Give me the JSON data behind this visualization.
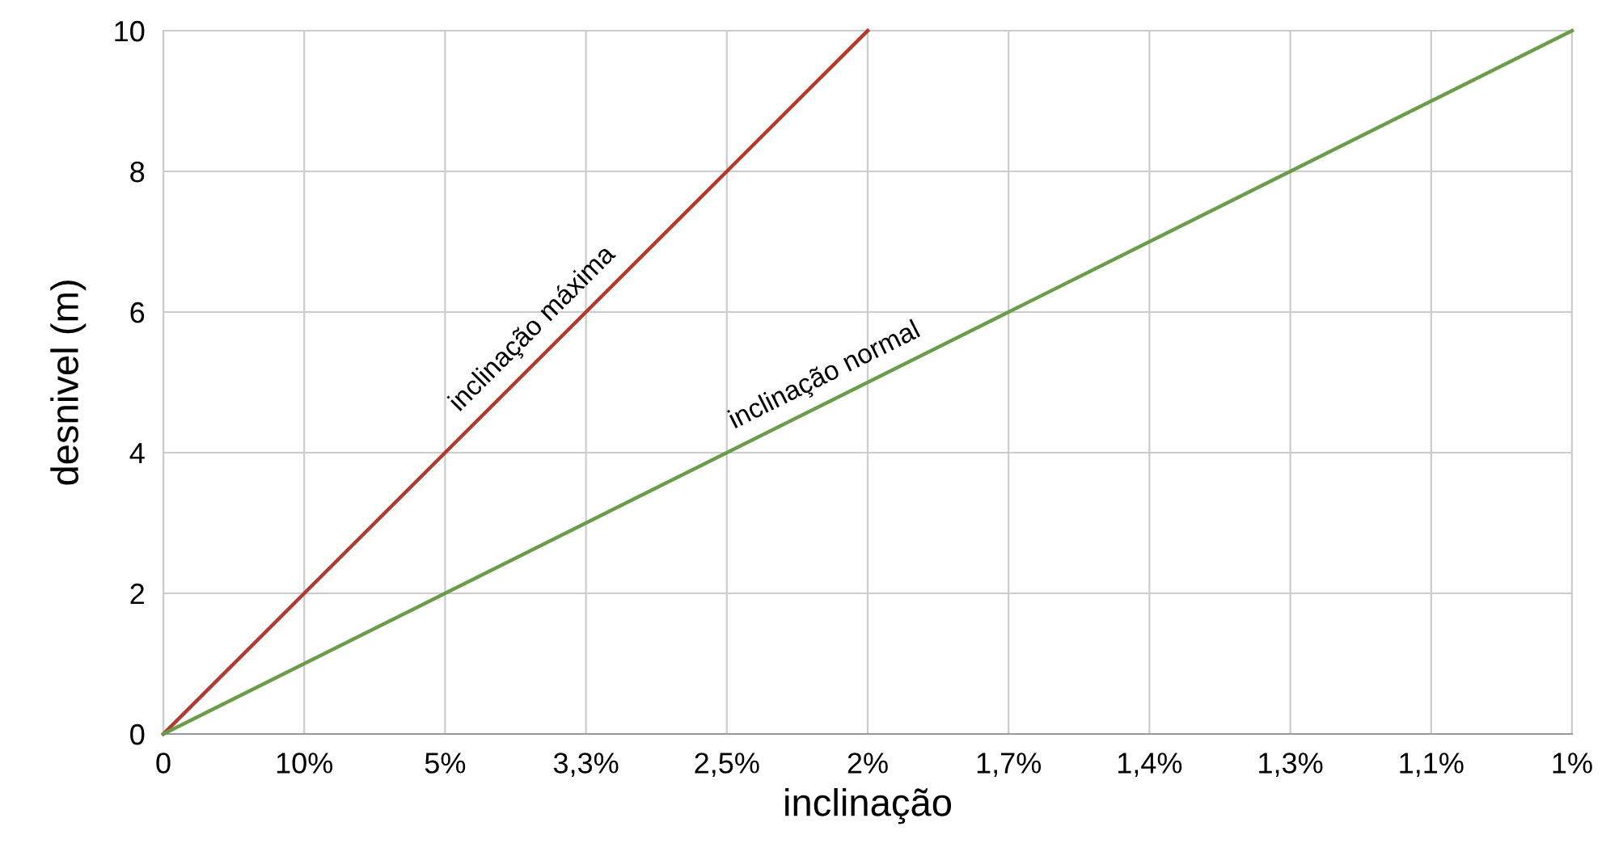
{
  "chart_data": {
    "type": "line",
    "xlabel": "inclinação",
    "ylabel": "desnivel (m)",
    "categories": [
      "0",
      "10%",
      "5%",
      "3,3%",
      "2,5%",
      "2%",
      "1,7%",
      "1,4%",
      "1,3%",
      "1,1%",
      "1%"
    ],
    "series": [
      {
        "color": "#b03a2e",
        "values": [
          0,
          2,
          4,
          6,
          8,
          10,
          null,
          null,
          null,
          null,
          null
        ]
      },
      {
        "color": "#6a9c4a",
        "values": [
          0,
          1,
          2,
          3,
          4,
          5,
          6,
          7,
          8,
          9,
          10
        ]
      }
    ],
    "annotations": [
      "inclinação máxima",
      "inclinação normal"
    ],
    "ylim": [
      0,
      10
    ],
    "yticks": [
      0,
      2,
      4,
      6,
      8,
      10
    ],
    "grid": true,
    "legend": false,
    "marker": "none",
    "line_style": "solid"
  }
}
